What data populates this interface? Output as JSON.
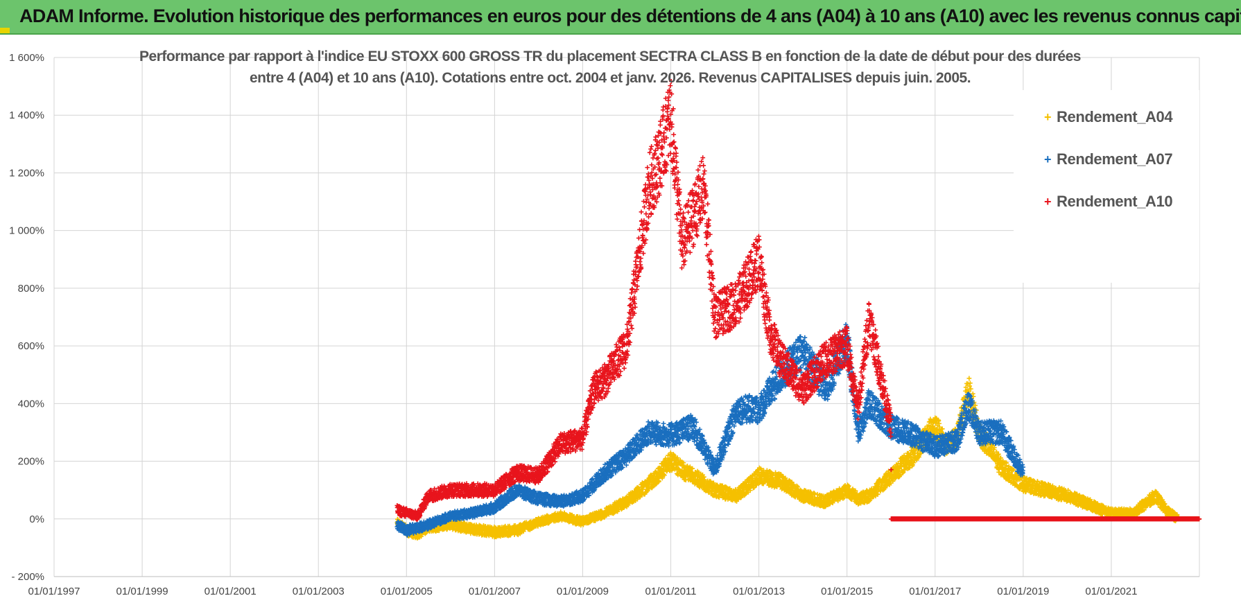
{
  "banner": {
    "title": "ADAM Informe. Evolution historique des performances en euros pour des détentions de 4 ans (A04) à 10 ans (A10) avec les revenus connus capitalisés",
    "color": "#6cc46c"
  },
  "chart_data": {
    "type": "scatter",
    "title_line1": "Performance par rapport à l'indice EU STOXX 600 GROSS TR  du placement SECTRA CLASS B en fonction de la date de début pour des durées",
    "title_line2": "entre 4 (A04) et 10 ans (A10).  Cotations entre oct. 2004 et janv. 2026.  Revenus CAPITALISES  depuis juin. 2005.",
    "x_axis": {
      "min": "1997-01-01",
      "max": "2023-01-01",
      "tick_labels": [
        "01/01/1997",
        "01/01/1999",
        "01/01/2001",
        "01/01/2003",
        "01/01/2005",
        "01/01/2007",
        "01/01/2009",
        "01/01/2011",
        "01/01/2013",
        "01/01/2015",
        "01/01/2017",
        "01/01/2019",
        "01/01/2021"
      ]
    },
    "y_axis": {
      "min": -200,
      "max": 1600,
      "unit": "%",
      "ticks": [
        -200,
        0,
        200,
        400,
        600,
        800,
        1000,
        1200,
        1400,
        1600
      ],
      "tick_labels": [
        "- 200%",
        "0%",
        "200%",
        "400%",
        "600%",
        "800%",
        "1 000%",
        "1 200%",
        "1 400%",
        "1 600%"
      ]
    },
    "grid": true,
    "legend_position": "top-right",
    "marker": "+",
    "series": [
      {
        "name": "Rendement_A04",
        "color": "#f5c000",
        "points": [
          [
            "2004-10-15",
            -10
          ],
          [
            "2005-01-01",
            -40
          ],
          [
            "2005-04-01",
            -50
          ],
          [
            "2005-07-01",
            -30
          ],
          [
            "2006-01-01",
            -20
          ],
          [
            "2006-07-01",
            -35
          ],
          [
            "2007-01-01",
            -45
          ],
          [
            "2007-07-01",
            -40
          ],
          [
            "2008-01-01",
            -10
          ],
          [
            "2008-07-01",
            10
          ],
          [
            "2009-01-01",
            -10
          ],
          [
            "2009-07-01",
            20
          ],
          [
            "2010-01-01",
            60
          ],
          [
            "2010-07-01",
            120
          ],
          [
            "2011-01-01",
            200
          ],
          [
            "2011-04-01",
            170
          ],
          [
            "2011-07-01",
            150
          ],
          [
            "2012-01-01",
            100
          ],
          [
            "2012-07-01",
            80
          ],
          [
            "2013-01-01",
            150
          ],
          [
            "2013-07-01",
            130
          ],
          [
            "2014-01-01",
            80
          ],
          [
            "2014-07-01",
            60
          ],
          [
            "2015-01-01",
            100
          ],
          [
            "2015-04-01",
            70
          ],
          [
            "2015-07-01",
            80
          ],
          [
            "2016-01-01",
            150
          ],
          [
            "2016-07-01",
            220
          ],
          [
            "2017-01-01",
            330
          ],
          [
            "2017-04-01",
            250
          ],
          [
            "2017-07-01",
            280
          ],
          [
            "2017-10-01",
            450
          ],
          [
            "2018-01-01",
            300
          ],
          [
            "2018-07-01",
            180
          ],
          [
            "2019-01-01",
            120
          ],
          [
            "2019-07-01",
            100
          ],
          [
            "2020-01-01",
            80
          ],
          [
            "2020-07-01",
            50
          ],
          [
            "2021-01-01",
            20
          ],
          [
            "2021-07-01",
            20
          ],
          [
            "2022-01-01",
            80
          ],
          [
            "2022-04-01",
            30
          ],
          [
            "2022-07-01",
            0
          ],
          [
            "2023-01-01",
            0
          ]
        ]
      },
      {
        "name": "Rendement_A07",
        "color": "#1a6fbf",
        "points": [
          [
            "2004-10-15",
            -20
          ],
          [
            "2005-01-01",
            -40
          ],
          [
            "2005-07-01",
            -20
          ],
          [
            "2006-01-01",
            10
          ],
          [
            "2006-07-01",
            20
          ],
          [
            "2007-01-01",
            40
          ],
          [
            "2007-07-01",
            100
          ],
          [
            "2008-01-01",
            70
          ],
          [
            "2008-07-01",
            60
          ],
          [
            "2009-01-01",
            80
          ],
          [
            "2009-07-01",
            160
          ],
          [
            "2010-01-01",
            220
          ],
          [
            "2010-07-01",
            300
          ],
          [
            "2011-01-01",
            290
          ],
          [
            "2011-07-01",
            320
          ],
          [
            "2012-01-01",
            170
          ],
          [
            "2012-07-01",
            380
          ],
          [
            "2013-01-01",
            380
          ],
          [
            "2013-07-01",
            500
          ],
          [
            "2014-01-01",
            580
          ],
          [
            "2014-07-01",
            450
          ],
          [
            "2015-01-01",
            620
          ],
          [
            "2015-04-01",
            300
          ],
          [
            "2015-07-01",
            400
          ],
          [
            "2016-01-01",
            320
          ],
          [
            "2016-07-01",
            290
          ],
          [
            "2017-01-01",
            250
          ],
          [
            "2017-07-01",
            270
          ],
          [
            "2017-10-01",
            400
          ],
          [
            "2018-01-01",
            300
          ],
          [
            "2018-07-01",
            300
          ],
          [
            "2019-01-01",
            160
          ]
        ]
      },
      {
        "name": "Rendement_A10",
        "color": "#e8141c",
        "points": [
          [
            "2004-10-15",
            30
          ],
          [
            "2005-04-01",
            10
          ],
          [
            "2005-07-01",
            80
          ],
          [
            "2006-01-01",
            100
          ],
          [
            "2007-01-01",
            100
          ],
          [
            "2007-07-01",
            160
          ],
          [
            "2008-01-01",
            150
          ],
          [
            "2008-07-01",
            260
          ],
          [
            "2009-01-01",
            280
          ],
          [
            "2009-04-01",
            450
          ],
          [
            "2009-07-01",
            480
          ],
          [
            "2010-01-01",
            600
          ],
          [
            "2010-07-01",
            1150
          ],
          [
            "2010-10-01",
            1250
          ],
          [
            "2011-01-01",
            1400
          ],
          [
            "2011-04-01",
            950
          ],
          [
            "2011-10-01",
            1150
          ],
          [
            "2012-01-01",
            700
          ],
          [
            "2012-07-01",
            750
          ],
          [
            "2013-01-01",
            900
          ],
          [
            "2013-04-01",
            650
          ],
          [
            "2013-07-01",
            550
          ],
          [
            "2014-01-01",
            450
          ],
          [
            "2014-07-01",
            550
          ],
          [
            "2015-01-01",
            600
          ],
          [
            "2015-04-01",
            380
          ],
          [
            "2015-07-01",
            700
          ],
          [
            "2016-01-01",
            320
          ],
          [
            "2016-01-02",
            0
          ],
          [
            "2023-01-01",
            0
          ]
        ]
      }
    ]
  }
}
